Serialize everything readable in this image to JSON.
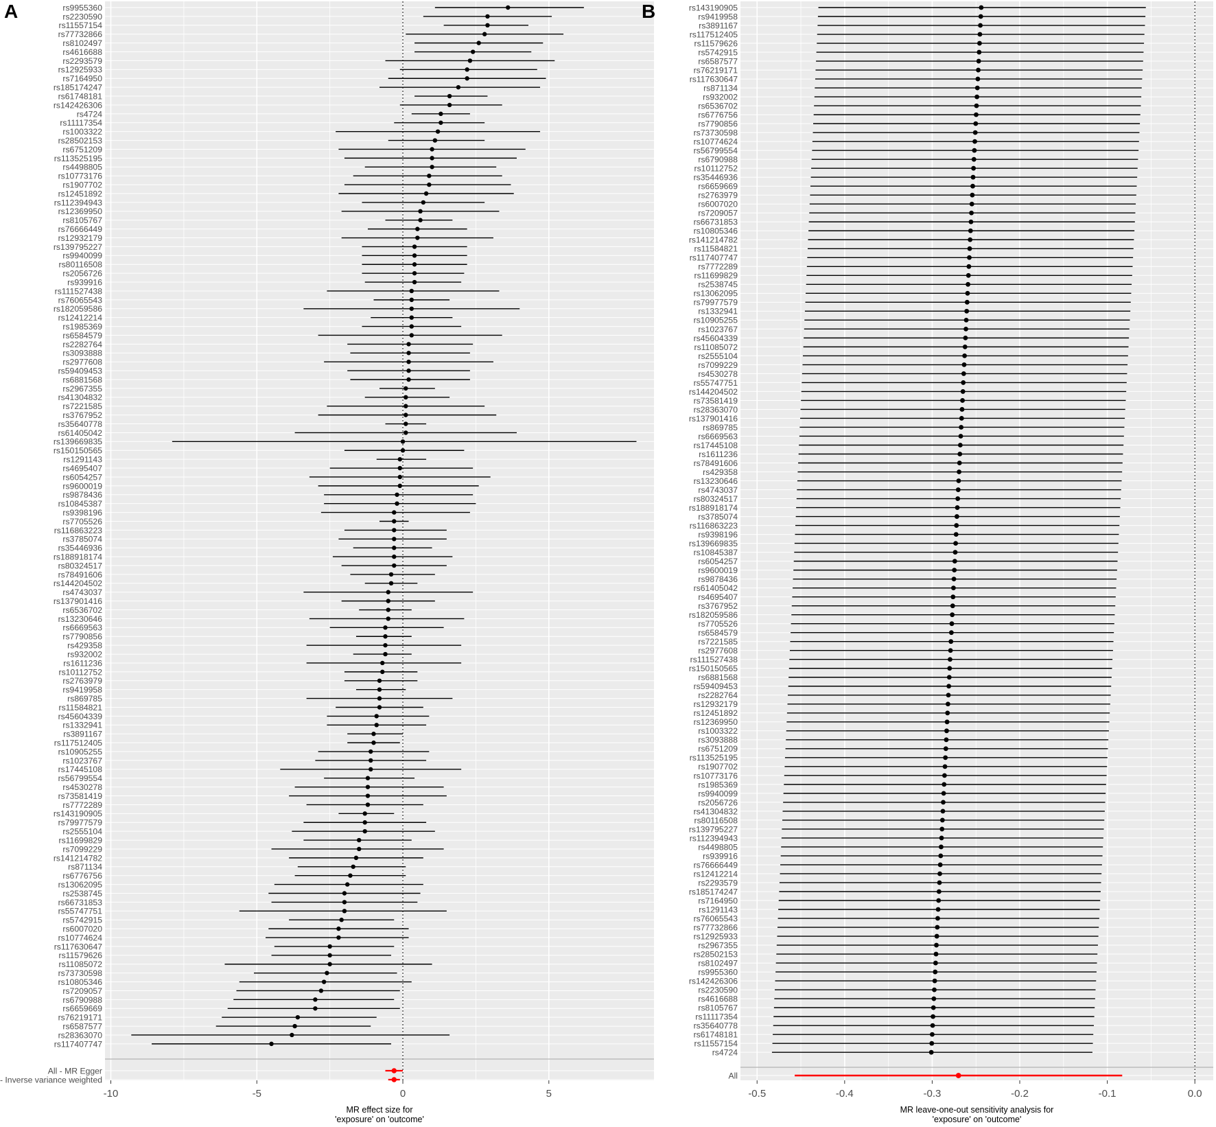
{
  "chart_data": [
    {
      "panel": "A",
      "type": "scatter",
      "style": "forest-plot",
      "xlabel": "MR effect size for\n'exposure' on 'outcome'",
      "xlim": [
        -10.2,
        8.6
      ],
      "xticks": [
        -10,
        -5,
        0,
        5
      ],
      "grid": true,
      "reference_line": 0,
      "colors": {
        "points": "#000000",
        "summary": "#ff0000",
        "panel": "#ebebeb",
        "grid": "#ffffff"
      },
      "rows": [
        {
          "snp": "rs9955360",
          "b": 3.6,
          "lo": 1.1,
          "hi": 6.2
        },
        {
          "snp": "rs2230590",
          "b": 2.9,
          "lo": 0.7,
          "hi": 5.1
        },
        {
          "snp": "rs11557154",
          "b": 2.9,
          "lo": 1.4,
          "hi": 4.3
        },
        {
          "snp": "rs77732866",
          "b": 2.8,
          "lo": 0.1,
          "hi": 5.5
        },
        {
          "snp": "rs8102497",
          "b": 2.6,
          "lo": 0.4,
          "hi": 4.8
        },
        {
          "snp": "rs4616688",
          "b": 2.4,
          "lo": 0.4,
          "hi": 4.4
        },
        {
          "snp": "rs2293579",
          "b": 2.3,
          "lo": -0.6,
          "hi": 5.2
        },
        {
          "snp": "rs12925933",
          "b": 2.2,
          "lo": -0.1,
          "hi": 4.6
        },
        {
          "snp": "rs7164950",
          "b": 2.2,
          "lo": -0.5,
          "hi": 4.9
        },
        {
          "snp": "rs185174247",
          "b": 1.9,
          "lo": -0.8,
          "hi": 4.7
        },
        {
          "snp": "rs61748181",
          "b": 1.6,
          "lo": 0.4,
          "hi": 2.9
        },
        {
          "snp": "rs142426306",
          "b": 1.6,
          "lo": -0.1,
          "hi": 3.4
        },
        {
          "snp": "rs4724",
          "b": 1.3,
          "lo": 0.3,
          "hi": 2.3
        },
        {
          "snp": "rs11117354",
          "b": 1.3,
          "lo": -0.3,
          "hi": 2.8
        },
        {
          "snp": "rs1003322",
          "b": 1.2,
          "lo": -2.3,
          "hi": 4.7
        },
        {
          "snp": "rs28502153",
          "b": 1.1,
          "lo": -0.5,
          "hi": 2.8
        },
        {
          "snp": "rs6751209",
          "b": 1.0,
          "lo": -2.2,
          "hi": 4.2
        },
        {
          "snp": "rs113525195",
          "b": 1.0,
          "lo": -2.0,
          "hi": 3.9
        },
        {
          "snp": "rs4498805",
          "b": 1.0,
          "lo": -1.3,
          "hi": 3.2
        },
        {
          "snp": "rs10773176",
          "b": 0.9,
          "lo": -1.7,
          "hi": 3.4
        },
        {
          "snp": "rs1907702",
          "b": 0.9,
          "lo": -2.0,
          "hi": 3.7
        },
        {
          "snp": "rs12451892",
          "b": 0.8,
          "lo": -2.2,
          "hi": 3.8
        },
        {
          "snp": "rs112394943",
          "b": 0.7,
          "lo": -1.4,
          "hi": 2.8
        },
        {
          "snp": "rs12369950",
          "b": 0.6,
          "lo": -2.1,
          "hi": 3.3
        },
        {
          "snp": "rs8105767",
          "b": 0.6,
          "lo": -0.6,
          "hi": 1.7
        },
        {
          "snp": "rs76666449",
          "b": 0.5,
          "lo": -1.2,
          "hi": 2.2
        },
        {
          "snp": "rs12932179",
          "b": 0.5,
          "lo": -2.1,
          "hi": 3.1
        },
        {
          "snp": "rs139795227",
          "b": 0.4,
          "lo": -1.4,
          "hi": 2.2
        },
        {
          "snp": "rs9940099",
          "b": 0.4,
          "lo": -1.4,
          "hi": 2.2
        },
        {
          "snp": "rs80116508",
          "b": 0.4,
          "lo": -1.4,
          "hi": 2.2
        },
        {
          "snp": "rs2056726",
          "b": 0.4,
          "lo": -1.4,
          "hi": 2.1
        },
        {
          "snp": "rs939916",
          "b": 0.4,
          "lo": -1.3,
          "hi": 2.0
        },
        {
          "snp": "rs111527438",
          "b": 0.3,
          "lo": -2.6,
          "hi": 3.3
        },
        {
          "snp": "rs76065543",
          "b": 0.3,
          "lo": -1.0,
          "hi": 1.6
        },
        {
          "snp": "rs182059586",
          "b": 0.3,
          "lo": -3.4,
          "hi": 4.0
        },
        {
          "snp": "rs12412214",
          "b": 0.3,
          "lo": -1.1,
          "hi": 1.7
        },
        {
          "snp": "rs1985369",
          "b": 0.3,
          "lo": -1.4,
          "hi": 2.0
        },
        {
          "snp": "rs6584579",
          "b": 0.3,
          "lo": -2.9,
          "hi": 3.4
        },
        {
          "snp": "rs2282764",
          "b": 0.2,
          "lo": -1.9,
          "hi": 2.4
        },
        {
          "snp": "rs3093888",
          "b": 0.2,
          "lo": -1.8,
          "hi": 2.3
        },
        {
          "snp": "rs2977608",
          "b": 0.2,
          "lo": -2.7,
          "hi": 3.1
        },
        {
          "snp": "rs59409453",
          "b": 0.2,
          "lo": -1.9,
          "hi": 2.3
        },
        {
          "snp": "rs6881568",
          "b": 0.2,
          "lo": -1.8,
          "hi": 2.3
        },
        {
          "snp": "rs2967355",
          "b": 0.1,
          "lo": -0.8,
          "hi": 1.1
        },
        {
          "snp": "rs41304832",
          "b": 0.1,
          "lo": -1.3,
          "hi": 1.6
        },
        {
          "snp": "rs7221585",
          "b": 0.1,
          "lo": -2.6,
          "hi": 2.8
        },
        {
          "snp": "rs3767952",
          "b": 0.1,
          "lo": -2.9,
          "hi": 3.2
        },
        {
          "snp": "rs35640778",
          "b": 0.1,
          "lo": -0.6,
          "hi": 0.8
        },
        {
          "snp": "rs61405042",
          "b": 0.1,
          "lo": -3.7,
          "hi": 3.9
        },
        {
          "snp": "rs139669835",
          "b": 0.0,
          "lo": -7.9,
          "hi": 8.0
        },
        {
          "snp": "rs150150565",
          "b": 0.0,
          "lo": -2.0,
          "hi": 2.1
        },
        {
          "snp": "rs1291143",
          "b": -0.1,
          "lo": -0.9,
          "hi": 0.8
        },
        {
          "snp": "rs4695407",
          "b": -0.1,
          "lo": -2.5,
          "hi": 2.4
        },
        {
          "snp": "rs6054257",
          "b": -0.1,
          "lo": -3.2,
          "hi": 3.0
        },
        {
          "snp": "rs9600019",
          "b": -0.1,
          "lo": -2.9,
          "hi": 2.6
        },
        {
          "snp": "rs9878436",
          "b": -0.2,
          "lo": -2.7,
          "hi": 2.4
        },
        {
          "snp": "rs10845387",
          "b": -0.2,
          "lo": -2.7,
          "hi": 2.5
        },
        {
          "snp": "rs9398196",
          "b": -0.3,
          "lo": -2.8,
          "hi": 2.3
        },
        {
          "snp": "rs7705526",
          "b": -0.3,
          "lo": -0.8,
          "hi": 0.2
        },
        {
          "snp": "rs116863223",
          "b": -0.3,
          "lo": -2.0,
          "hi": 1.5
        },
        {
          "snp": "rs3785074",
          "b": -0.3,
          "lo": -2.2,
          "hi": 1.5
        },
        {
          "snp": "rs35446936",
          "b": -0.3,
          "lo": -1.7,
          "hi": 1.0
        },
        {
          "snp": "rs188918174",
          "b": -0.3,
          "lo": -2.4,
          "hi": 1.7
        },
        {
          "snp": "rs80324517",
          "b": -0.3,
          "lo": -2.1,
          "hi": 1.5
        },
        {
          "snp": "rs78491606",
          "b": -0.4,
          "lo": -1.8,
          "hi": 1.1
        },
        {
          "snp": "rs144204502",
          "b": -0.4,
          "lo": -1.3,
          "hi": 0.5
        },
        {
          "snp": "rs4743037",
          "b": -0.5,
          "lo": -3.4,
          "hi": 2.4
        },
        {
          "snp": "rs137901416",
          "b": -0.5,
          "lo": -2.1,
          "hi": 1.1
        },
        {
          "snp": "rs6536702",
          "b": -0.5,
          "lo": -1.5,
          "hi": 0.3
        },
        {
          "snp": "rs13230646",
          "b": -0.5,
          "lo": -3.2,
          "hi": 2.1
        },
        {
          "snp": "rs6669563",
          "b": -0.6,
          "lo": -2.5,
          "hi": 1.4
        },
        {
          "snp": "rs7790856",
          "b": -0.6,
          "lo": -1.6,
          "hi": 0.3
        },
        {
          "snp": "rs429358",
          "b": -0.6,
          "lo": -3.3,
          "hi": 2.0
        },
        {
          "snp": "rs932002",
          "b": -0.6,
          "lo": -1.7,
          "hi": 0.3
        },
        {
          "snp": "rs1611236",
          "b": -0.7,
          "lo": -3.3,
          "hi": 2.0
        },
        {
          "snp": "rs10112752",
          "b": -0.7,
          "lo": -2.0,
          "hi": 0.5
        },
        {
          "snp": "rs2763979",
          "b": -0.8,
          "lo": -2.0,
          "hi": 0.5
        },
        {
          "snp": "rs9419958",
          "b": -0.8,
          "lo": -1.6,
          "hi": 0.1
        },
        {
          "snp": "rs869785",
          "b": -0.8,
          "lo": -3.3,
          "hi": 1.7
        },
        {
          "snp": "rs11584821",
          "b": -0.8,
          "lo": -2.3,
          "hi": 0.7
        },
        {
          "snp": "rs45604339",
          "b": -0.9,
          "lo": -2.6,
          "hi": 0.9
        },
        {
          "snp": "rs1332941",
          "b": -0.9,
          "lo": -2.6,
          "hi": 0.8
        },
        {
          "snp": "rs3891167",
          "b": -1.0,
          "lo": -1.9,
          "hi": 0.0
        },
        {
          "snp": "rs117512405",
          "b": -1.0,
          "lo": -1.9,
          "hi": -0.1
        },
        {
          "snp": "rs10905255",
          "b": -1.1,
          "lo": -2.9,
          "hi": 0.9
        },
        {
          "snp": "rs1023767",
          "b": -1.1,
          "lo": -3.0,
          "hi": 0.8
        },
        {
          "snp": "rs17445108",
          "b": -1.1,
          "lo": -4.2,
          "hi": 2.0
        },
        {
          "snp": "rs56799554",
          "b": -1.2,
          "lo": -2.7,
          "hi": 0.4
        },
        {
          "snp": "rs4530278",
          "b": -1.2,
          "lo": -3.7,
          "hi": 1.4
        },
        {
          "snp": "rs73581419",
          "b": -1.2,
          "lo": -3.9,
          "hi": 1.5
        },
        {
          "snp": "rs7772289",
          "b": -1.2,
          "lo": -3.3,
          "hi": 0.7
        },
        {
          "snp": "rs143190905",
          "b": -1.3,
          "lo": -2.2,
          "hi": -0.3
        },
        {
          "snp": "rs79977579",
          "b": -1.3,
          "lo": -3.4,
          "hi": 0.8
        },
        {
          "snp": "rs2555104",
          "b": -1.3,
          "lo": -3.8,
          "hi": 1.1
        },
        {
          "snp": "rs11699829",
          "b": -1.5,
          "lo": -3.4,
          "hi": 0.3
        },
        {
          "snp": "rs7099229",
          "b": -1.5,
          "lo": -4.5,
          "hi": 1.4
        },
        {
          "snp": "rs141214782",
          "b": -1.6,
          "lo": -3.9,
          "hi": 0.7
        },
        {
          "snp": "rs871134",
          "b": -1.7,
          "lo": -3.6,
          "hi": 0.1
        },
        {
          "snp": "rs6776756",
          "b": -1.8,
          "lo": -3.7,
          "hi": 0.1
        },
        {
          "snp": "rs13062095",
          "b": -1.9,
          "lo": -4.4,
          "hi": 0.7
        },
        {
          "snp": "rs2538745",
          "b": -2.0,
          "lo": -4.6,
          "hi": 0.6
        },
        {
          "snp": "rs66731853",
          "b": -2.0,
          "lo": -4.5,
          "hi": 0.5
        },
        {
          "snp": "rs55747751",
          "b": -2.0,
          "lo": -5.6,
          "hi": 1.5
        },
        {
          "snp": "rs5742915",
          "b": -2.1,
          "lo": -3.9,
          "hi": -0.3
        },
        {
          "snp": "rs6007020",
          "b": -2.2,
          "lo": -4.6,
          "hi": 0.2
        },
        {
          "snp": "rs10774624",
          "b": -2.2,
          "lo": -4.7,
          "hi": 0.2
        },
        {
          "snp": "rs117630647",
          "b": -2.5,
          "lo": -4.4,
          "hi": -0.3
        },
        {
          "snp": "rs11579626",
          "b": -2.5,
          "lo": -4.5,
          "hi": -0.4
        },
        {
          "snp": "rs11085072",
          "b": -2.5,
          "lo": -6.1,
          "hi": 1.0
        },
        {
          "snp": "rs73730598",
          "b": -2.6,
          "lo": -5.1,
          "hi": -0.2
        },
        {
          "snp": "rs10805346",
          "b": -2.7,
          "lo": -5.6,
          "hi": 0.3
        },
        {
          "snp": "rs7209057",
          "b": -2.8,
          "lo": -5.7,
          "hi": -0.1
        },
        {
          "snp": "rs6790988",
          "b": -3.0,
          "lo": -5.8,
          "hi": -0.3
        },
        {
          "snp": "rs6659669",
          "b": -3.0,
          "lo": -6.0,
          "hi": -0.1
        },
        {
          "snp": "rs76219171",
          "b": -3.6,
          "lo": -6.2,
          "hi": -0.9
        },
        {
          "snp": "rs6587577",
          "b": -3.7,
          "lo": -6.4,
          "hi": -1.1
        },
        {
          "snp": "rs28363070",
          "b": -3.8,
          "lo": -9.3,
          "hi": 1.6
        },
        {
          "snp": "rs117407747",
          "b": -4.5,
          "lo": -8.6,
          "hi": -0.4
        }
      ],
      "summary_rows": [
        {
          "label": "All - MR Egger",
          "b": -0.3,
          "lo": -0.6,
          "hi": 0.0
        },
        {
          "label": "All - Inverse variance weighted",
          "b": -0.3,
          "lo": -0.5,
          "hi": -0.1
        }
      ]
    },
    {
      "panel": "B",
      "type": "scatter",
      "style": "leave-one-out",
      "xlabel": "MR leave-one-out sensitivity analysis for\n'exposure' on 'outcome'",
      "xlim": [
        -0.519,
        0.021
      ],
      "xticks": [
        -0.5,
        -0.4,
        -0.3,
        -0.2,
        -0.1,
        0.0
      ],
      "xtick_labels": [
        "-0.5",
        "-0.4",
        "-0.3",
        "-0.2",
        "-0.1",
        "0.0"
      ],
      "grid": true,
      "reference_line": 0,
      "colors": {
        "points": "#000000",
        "summary": "#ff0000",
        "panel": "#ebebeb",
        "grid": "#ffffff"
      },
      "snps": [
        "rs143190905",
        "rs9419958",
        "rs3891167",
        "rs117512405",
        "rs11579626",
        "rs5742915",
        "rs6587577",
        "rs76219171",
        "rs117630647",
        "rs871134",
        "rs932002",
        "rs6536702",
        "rs6776756",
        "rs7790856",
        "rs73730598",
        "rs10774624",
        "rs56799554",
        "rs6790988",
        "rs10112752",
        "rs35446936",
        "rs6659669",
        "rs2763979",
        "rs6007020",
        "rs7209057",
        "rs66731853",
        "rs10805346",
        "rs141214782",
        "rs11584821",
        "rs117407747",
        "rs7772289",
        "rs11699829",
        "rs2538745",
        "rs13062095",
        "rs79977579",
        "rs1332941",
        "rs10905255",
        "rs1023767",
        "rs45604339",
        "rs11085072",
        "rs2555104",
        "rs7099229",
        "rs4530278",
        "rs55747751",
        "rs144204502",
        "rs73581419",
        "rs28363070",
        "rs137901416",
        "rs869785",
        "rs6669563",
        "rs17445108",
        "rs1611236",
        "rs78491606",
        "rs429358",
        "rs13230646",
        "rs4743037",
        "rs80324517",
        "rs188918174",
        "rs3785074",
        "rs116863223",
        "rs9398196",
        "rs139669835",
        "rs10845387",
        "rs6054257",
        "rs9600019",
        "rs9878436",
        "rs61405042",
        "rs4695407",
        "rs3767952",
        "rs182059586",
        "rs7705526",
        "rs6584579",
        "rs7221585",
        "rs2977608",
        "rs111527438",
        "rs150150565",
        "rs6881568",
        "rs59409453",
        "rs2282764",
        "rs12932179",
        "rs12451892",
        "rs12369950",
        "rs1003322",
        "rs3093888",
        "rs6751209",
        "rs113525195",
        "rs1907702",
        "rs10773176",
        "rs1985369",
        "rs9940099",
        "rs2056726",
        "rs41304832",
        "rs80116508",
        "rs139795227",
        "rs112394943",
        "rs4498805",
        "rs939916",
        "rs76666449",
        "rs12412214",
        "rs2293579",
        "rs185174247",
        "rs7164950",
        "rs1291143",
        "rs76065543",
        "rs77732866",
        "rs12925933",
        "rs2967355",
        "rs28502153",
        "rs8102497",
        "rs9955360",
        "rs142426306",
        "rs2230590",
        "rs4616688",
        "rs8105767",
        "rs11117354",
        "rs35640778",
        "rs61748181",
        "rs11557154",
        "rs4724"
      ],
      "first_point": {
        "b": -0.244,
        "lo": -0.43,
        "hi": -0.056
      },
      "last_point": {
        "b": -0.301,
        "lo": -0.483,
        "hi": -0.117
      },
      "summary_rows": [
        {
          "label": "All",
          "b": -0.27,
          "lo": -0.457,
          "hi": -0.083
        }
      ]
    }
  ]
}
